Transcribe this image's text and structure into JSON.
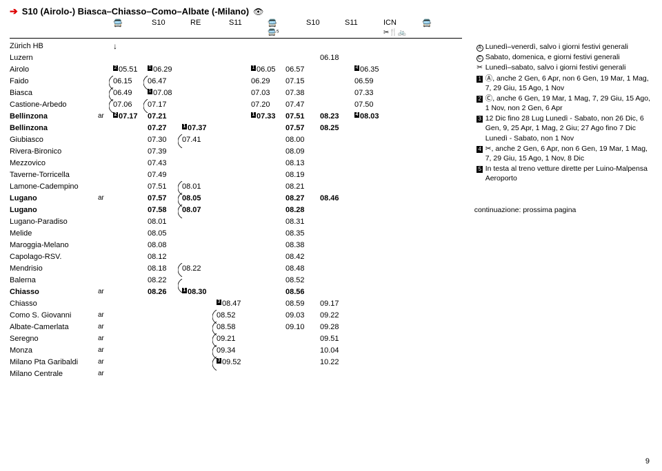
{
  "title": "S10 (Airolo-) Biasca–Chiasso–Como–Albate (-Milano)",
  "services": {
    "labels": [
      "S10",
      "RE",
      "S11",
      "",
      "S10",
      "S11",
      "ICN",
      ""
    ],
    "row2": [
      "",
      "",
      "",
      "🚍⁵",
      "",
      "",
      "✂🍴🚲",
      ""
    ]
  },
  "stations": [
    {
      "n": "Zürich HB",
      "ar": "",
      "t": [
        "↓",
        "",
        "",
        "",
        "",
        "",
        "",
        ""
      ]
    },
    {
      "n": "Luzern",
      "ar": "",
      "t": [
        "",
        "",
        "",
        "",
        "",
        "",
        "06.18",
        ""
      ]
    },
    {
      "n": "Airolo",
      "ar": "",
      "t": [
        "²05.51",
        "¹06.29",
        "",
        "",
        "¹06.05",
        "06.57",
        "",
        "⁴06.35"
      ]
    },
    {
      "n": "Faido",
      "ar": "",
      "t": [
        "06.15",
        "06.47",
        "",
        "",
        "06.29",
        "07.15",
        "",
        "06.59"
      ],
      "c": [
        0,
        1
      ]
    },
    {
      "n": "Biasca",
      "ar": "",
      "t": [
        "06.49",
        "¹07.08",
        "",
        "",
        "07.03",
        "07.38",
        "",
        "07.33"
      ],
      "c": [
        0
      ]
    },
    {
      "n": "Castione-Arbedo",
      "ar": "",
      "t": [
        "07.06",
        "07.17",
        "",
        "",
        "07.20",
        "07.47",
        "",
        "07.50"
      ],
      "c": [
        0,
        1
      ]
    },
    {
      "n": "Bellinzona",
      "ar": "ar",
      "t": [
        "²07.17",
        "07.21",
        "",
        "",
        "¹07.33",
        "07.51",
        "08.23",
        "⁴08.03"
      ],
      "bold": true
    },
    {
      "n": "Bellinzona",
      "ar": "",
      "t": [
        "",
        "07.27",
        "¹07.37",
        "",
        "",
        "07.57",
        "08.25",
        ""
      ],
      "bold": true
    },
    {
      "n": "Giubiasco",
      "ar": "",
      "t": [
        "",
        "07.30",
        "07.41",
        "",
        "",
        "08.00",
        "",
        ""
      ],
      "c": [
        2
      ],
      "v": [
        6
      ]
    },
    {
      "n": "Rivera-Bironico",
      "ar": "",
      "t": [
        "",
        "07.39",
        "",
        "",
        "",
        "08.09",
        "",
        ""
      ],
      "v": [
        2,
        6
      ]
    },
    {
      "n": "Mezzovico",
      "ar": "",
      "t": [
        "",
        "07.43",
        "",
        "",
        "",
        "08.13",
        "",
        ""
      ],
      "v": [
        2,
        6
      ]
    },
    {
      "n": "Taverne-Torricella",
      "ar": "",
      "t": [
        "",
        "07.49",
        "",
        "",
        "",
        "08.19",
        "",
        ""
      ],
      "v": [
        2,
        6
      ]
    },
    {
      "n": "Lamone-Cadempino",
      "ar": "",
      "t": [
        "",
        "07.51",
        "08.01",
        "",
        "",
        "08.21",
        "",
        ""
      ],
      "c": [
        2
      ],
      "v": [
        6
      ]
    },
    {
      "n": "Lugano",
      "ar": "ar",
      "t": [
        "",
        "07.57",
        "08.05",
        "",
        "",
        "08.27",
        "08.46",
        ""
      ],
      "bold": true,
      "c": [
        2
      ]
    },
    {
      "n": "Lugano",
      "ar": "",
      "t": [
        "",
        "07.58",
        "08.07",
        "",
        "",
        "08.28",
        "",
        ""
      ],
      "bold": true,
      "c": [
        2
      ]
    },
    {
      "n": "Lugano-Paradiso",
      "ar": "",
      "t": [
        "",
        "08.01",
        "",
        "",
        "",
        "08.31",
        "",
        ""
      ],
      "v": [
        2
      ]
    },
    {
      "n": "Melide",
      "ar": "",
      "t": [
        "",
        "08.05",
        "",
        "",
        "",
        "08.35",
        "",
        ""
      ],
      "v": [
        2
      ]
    },
    {
      "n": "Maroggia-Melano",
      "ar": "",
      "t": [
        "",
        "08.08",
        "",
        "",
        "",
        "08.38",
        "",
        ""
      ],
      "v": [
        2
      ]
    },
    {
      "n": "Capolago-RSV.",
      "ar": "",
      "t": [
        "",
        "08.12",
        "",
        "",
        "",
        "08.42",
        "",
        ""
      ],
      "v": [
        2
      ]
    },
    {
      "n": "Mendrisio",
      "ar": "",
      "t": [
        "",
        "08.18",
        "08.22",
        "",
        "",
        "08.48",
        "",
        ""
      ],
      "c": [
        2
      ]
    },
    {
      "n": "Balerna",
      "ar": "",
      "t": [
        "",
        "08.22",
        "",
        "",
        "",
        "08.52",
        "",
        ""
      ],
      "c": [
        2
      ]
    },
    {
      "n": "Chiasso",
      "ar": "ar",
      "t": [
        "",
        "08.26",
        "¹08.30",
        "",
        "",
        "08.56",
        "",
        ""
      ],
      "bold": true
    },
    {
      "n": "Chiasso",
      "ar": "",
      "t": [
        "",
        "",
        "",
        "³08.47",
        "",
        "08.59",
        "09.17",
        ""
      ]
    },
    {
      "n": "Como S. Giovanni",
      "ar": "ar",
      "t": [
        "",
        "",
        "",
        "08.52",
        "",
        "09.03",
        "09.22",
        ""
      ],
      "c": [
        3
      ]
    },
    {
      "n": "Albate-Camerlata",
      "ar": "ar",
      "t": [
        "",
        "",
        "",
        "08.58",
        "",
        "09.10",
        "09.28",
        ""
      ],
      "c": [
        3
      ]
    },
    {
      "n": "Seregno",
      "ar": "ar",
      "t": [
        "",
        "",
        "",
        "09.21",
        "",
        "",
        "09.51",
        ""
      ],
      "c": [
        3
      ]
    },
    {
      "n": "Monza",
      "ar": "ar",
      "t": [
        "",
        "",
        "",
        "09.34",
        "",
        "",
        "10.04",
        ""
      ],
      "c": [
        3
      ]
    },
    {
      "n": "Milano Pta Garibaldi",
      "ar": "ar",
      "t": [
        "",
        "",
        "",
        "³09.52",
        "",
        "",
        "10.22",
        ""
      ],
      "c": [
        3
      ]
    },
    {
      "n": "Milano Centrale",
      "ar": "ar",
      "t": [
        "",
        "",
        "",
        "",
        "",
        "",
        "",
        ""
      ]
    }
  ],
  "notes": [
    {
      "s": "Ⓐ",
      "t": "Lunedì–venerdì, salvo i giorni festivi generali"
    },
    {
      "s": "Ⓒ",
      "t": "Sabato, domenica, e giorni festivi generali"
    },
    {
      "s": "✂",
      "t": "Lunedì–sabato, salvo i giorni festivi generali"
    },
    {
      "s": "1",
      "box": true,
      "t": "Ⓐ, anche 2 Gen, 6 Apr, non 6 Gen, 19 Mar, 1 Mag, 7, 29 Giu, 15 Ago, 1 Nov"
    },
    {
      "s": "2",
      "box": true,
      "t": "Ⓒ, anche 6 Gen, 19 Mar, 1 Mag, 7, 29 Giu, 15 Ago, 1 Nov, non 2 Gen, 6 Apr"
    },
    {
      "s": "3",
      "box": true,
      "t": "12 Dic fino 28 Lug Lunedì - Sabato, non 26 Dic, 6 Gen, 9, 25 Apr, 1 Mag, 2 Giu; 27 Ago fino 7 Dic Lunedì - Sabato, non 1 Nov"
    },
    {
      "s": "4",
      "box": true,
      "t": "✂, anche 2 Gen, 6 Apr, non 6 Gen, 19 Mar, 1 Mag, 7, 29 Giu, 15 Ago, 1 Nov, 8 Dic"
    },
    {
      "s": "5",
      "box": true,
      "t": "In testa al treno vetture dirette per Luino-Malpensa Aeroporto"
    }
  ],
  "continuation": "continuazione: prossima pagina",
  "page": "9"
}
